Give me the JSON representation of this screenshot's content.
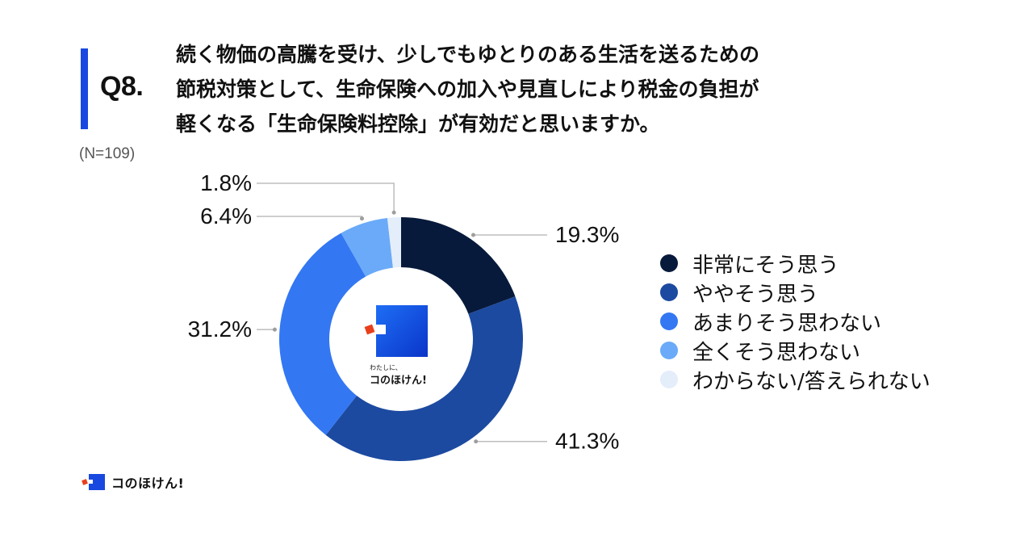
{
  "header": {
    "q_label": "Q8.",
    "question_lines": [
      "続く物価の高騰を受け、少しでもゆとりのある生活を送るための",
      "節税対策として、生命保険への加入や見直しにより税金の負担が",
      "軽くなる「生命保険料控除」が有効だと思いますか。"
    ],
    "n_label": "(N=109)"
  },
  "chart_data": {
    "type": "pie",
    "donut": true,
    "categories": [
      "非常にそう思う",
      "ややそう思う",
      "あまりそう思わない",
      "全くそう思わない",
      "わからない/答えられない"
    ],
    "values": [
      19.3,
      41.3,
      31.2,
      6.4,
      1.8
    ],
    "value_labels": [
      "19.3%",
      "41.3%",
      "31.2%",
      "6.4%",
      "1.8%"
    ],
    "colors": [
      "#071a3b",
      "#1c4aa0",
      "#3377f2",
      "#6aaaf8",
      "#e4eefb"
    ],
    "legend_placement": "right"
  },
  "center_logo": {
    "line1": "わたしに、",
    "line2": "コのほけん!"
  },
  "footer": {
    "brand": "コのほけん!"
  }
}
